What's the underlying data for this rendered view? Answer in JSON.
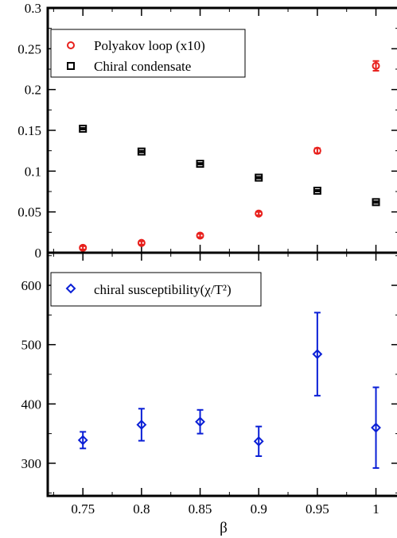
{
  "chart_data": [
    {
      "type": "scatter",
      "panel": "top",
      "x": [
        0.75,
        0.8,
        0.85,
        0.9,
        0.95,
        1.0
      ],
      "xlim": [
        0.72,
        1.02
      ],
      "ylim": [
        0,
        0.3
      ],
      "yticks": [
        0,
        0.05,
        0.1,
        0.15,
        0.2,
        0.25,
        0.3
      ],
      "ytick_labels": [
        "0",
        "0.05",
        "0.1",
        "0.15",
        "0.2",
        "0.25",
        "0.3"
      ],
      "legend_position": "top-left",
      "series": [
        {
          "name": "Polyakov loop (x10)",
          "marker": "circle",
          "color": "#e8201c",
          "values": [
            0.006,
            0.012,
            0.021,
            0.048,
            0.125,
            0.229
          ],
          "errors": [
            0.002,
            0.002,
            0.002,
            0.002,
            0.003,
            0.006
          ]
        },
        {
          "name": "Chiral condensate",
          "marker": "square",
          "color": "#000000",
          "values": [
            0.152,
            0.124,
            0.109,
            0.092,
            0.076,
            0.062
          ],
          "errors": [
            0.001,
            0.001,
            0.001,
            0.001,
            0.001,
            0.001
          ]
        }
      ]
    },
    {
      "type": "scatter",
      "panel": "bottom",
      "x": [
        0.75,
        0.8,
        0.85,
        0.9,
        0.95,
        1.0
      ],
      "xlim": [
        0.72,
        1.02
      ],
      "ylim": [
        245,
        655
      ],
      "yticks": [
        300,
        400,
        500,
        600
      ],
      "ytick_labels": [
        "300",
        "400",
        "500",
        "600"
      ],
      "xticks": [
        0.75,
        0.8,
        0.85,
        0.9,
        0.95,
        1.0
      ],
      "xtick_labels": [
        "0.75",
        "0.8",
        "0.85",
        "0.9",
        "0.95",
        "1"
      ],
      "xlabel": "β",
      "legend_position": "top-left",
      "series": [
        {
          "name": "chiral susceptibility(χ/T²)",
          "marker": "diamond",
          "color": "#0a1fd6",
          "values": [
            339,
            365,
            370,
            337,
            484,
            360
          ],
          "errors": [
            14,
            27,
            20,
            25,
            70,
            68
          ]
        }
      ]
    }
  ]
}
